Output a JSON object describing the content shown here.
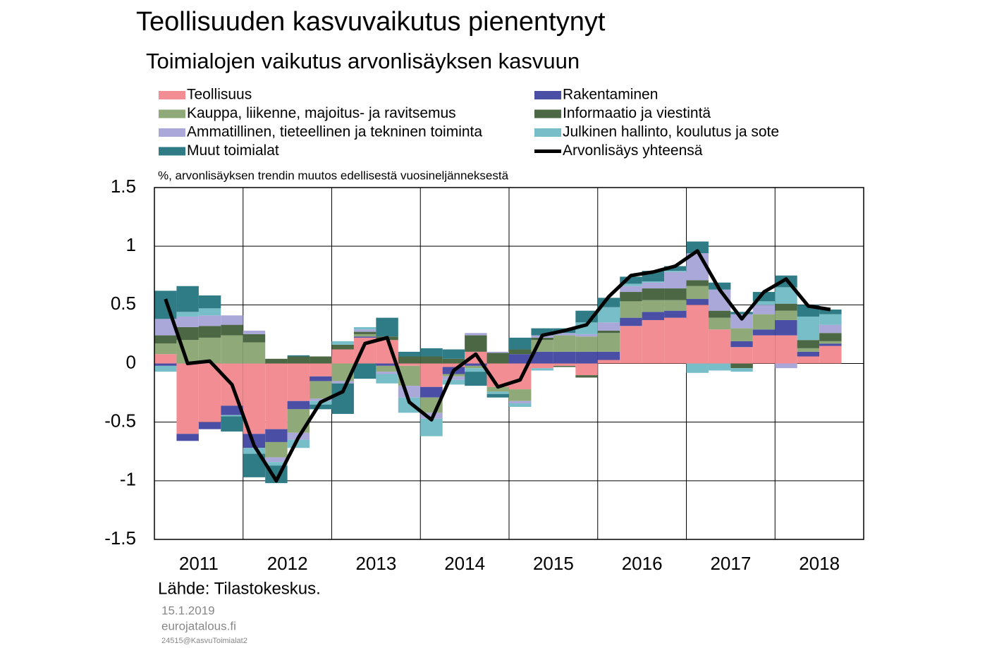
{
  "chart_data": {
    "type": "bar",
    "stacked": true,
    "title": "Teollisuuden kasvuvaikutus pienentynyt",
    "subtitle": "Toimialojen vaikutus arvonlisäyksen kasvuun",
    "y_label": "%, arvonlisäyksen trendin muutos edellisestä vuosineljänneksestä",
    "source": "Lähde: Tilastokeskus.",
    "date": "15.1.2019",
    "site": "eurojatalous.fi",
    "code": "24515@KasvuToimialat2",
    "categories": [
      "2011",
      null,
      null,
      null,
      "2012",
      null,
      null,
      null,
      "2013",
      null,
      null,
      null,
      "2014",
      null,
      null,
      null,
      "2015",
      null,
      null,
      null,
      "2016",
      null,
      null,
      null,
      "2017",
      null,
      null,
      null,
      "2018",
      null,
      null
    ],
    "ylim": [
      -1.5,
      1.5
    ],
    "yticks": [
      1.5,
      1,
      0.5,
      0,
      -0.5,
      -1,
      -1.5
    ],
    "grid": true,
    "series": [
      {
        "name": "Teollisuus",
        "color": "#f28e93",
        "values": [
          0.08,
          -0.6,
          -0.5,
          -0.36,
          -0.6,
          -0.56,
          -0.32,
          -0.11,
          0.12,
          0.22,
          0.2,
          -0.02,
          -0.2,
          -0.03,
          0.1,
          -0.2,
          -0.22,
          -0.04,
          -0.02,
          -0.1,
          0.03,
          0.32,
          0.37,
          0.39,
          0.5,
          0.29,
          0.14,
          0.24,
          0.24,
          0.06,
          0.15
        ]
      },
      {
        "name": "Rakentaminen",
        "color": "#4a4fa5",
        "values": [
          -0.02,
          -0.06,
          -0.06,
          -0.08,
          -0.12,
          -0.11,
          -0.07,
          -0.04,
          0,
          0.01,
          -0.02,
          0,
          -0.09,
          -0.06,
          -0.02,
          0,
          0.08,
          0.1,
          0.1,
          0.1,
          0.07,
          0.07,
          0.07,
          0.06,
          0.05,
          0,
          0.05,
          0.05,
          0.13,
          0.04,
          0.02
        ]
      },
      {
        "name": "Kauppa, liikenne, majoitus- ja ravitsemus",
        "color": "#8faa78",
        "values": [
          0.09,
          0.2,
          0.22,
          0.24,
          0.18,
          -0.13,
          -0.2,
          -0.15,
          -0.15,
          0.02,
          -0.05,
          -0.17,
          -0.13,
          -0.02,
          -0.02,
          -0.04,
          -0.1,
          0.1,
          0.14,
          0.13,
          0.16,
          0.14,
          0.1,
          0.09,
          0.11,
          0.1,
          0.11,
          0.13,
          0.08,
          0.03,
          0.02
        ]
      },
      {
        "name": "Informaatio ja viestintä",
        "color": "#4c6744",
        "values": [
          0.07,
          0.11,
          0.1,
          0.09,
          0.07,
          0.04,
          0.06,
          0.06,
          0.04,
          0.02,
          0.03,
          0.06,
          0.06,
          0.04,
          0.14,
          0.09,
          0.04,
          0.02,
          -0.01,
          -0.02,
          0.02,
          0.08,
          0.1,
          0.1,
          0.05,
          0.06,
          -0.04,
          0,
          0.06,
          0.07,
          0.07
        ]
      },
      {
        "name": "Ammatillinen, tieteellinen ja tekninen toiminta",
        "color": "#a9a8d8",
        "values": [
          0.14,
          0.09,
          0.09,
          0.08,
          0.03,
          -0.04,
          -0.06,
          -0.02,
          -0.02,
          0.02,
          -0.02,
          -0.1,
          -0.05,
          -0.03,
          0.02,
          0.01,
          -0.02,
          0.02,
          0.02,
          0.02,
          0.07,
          0.05,
          0.05,
          0.14,
          0.23,
          0.18,
          0.12,
          0.08,
          -0.04,
          0,
          0.07
        ]
      },
      {
        "name": "Julkinen hallinto, koulutus ja sote",
        "color": "#78bec8",
        "values": [
          -0.05,
          0.04,
          0.06,
          -0.01,
          -0.05,
          -0.03,
          -0.07,
          -0.03,
          0.03,
          0.02,
          -0.08,
          -0.13,
          -0.15,
          -0.04,
          -0.03,
          -0.02,
          -0.03,
          -0.02,
          0,
          0.1,
          0.13,
          0.02,
          0.01,
          0.01,
          -0.08,
          -0.06,
          -0.03,
          0.03,
          0.14,
          0.2,
          0.09
        ]
      },
      {
        "name": "Muut toimialat",
        "color": "#2f7c86",
        "values": [
          0.24,
          0.22,
          0.11,
          -0.13,
          -0.2,
          -0.15,
          0.01,
          -0.04,
          -0.26,
          -0.13,
          0.16,
          0.04,
          0.07,
          0.08,
          -0.12,
          -0.03,
          0.1,
          0.06,
          0.04,
          0.1,
          0.08,
          0.06,
          0.09,
          0.04,
          0.1,
          0.06,
          0.02,
          0.08,
          0.1,
          0.1,
          0.04
        ]
      },
      {
        "name": "Arvonlisäys yhteensä",
        "type": "line",
        "color": "#000000",
        "values": [
          0.55,
          0.0,
          0.02,
          -0.18,
          -0.7,
          -1.0,
          -0.63,
          -0.33,
          -0.24,
          0.17,
          0.22,
          -0.33,
          -0.48,
          -0.06,
          0.08,
          -0.2,
          -0.14,
          0.24,
          0.28,
          0.33,
          0.57,
          0.75,
          0.78,
          0.83,
          0.96,
          0.63,
          0.38,
          0.61,
          0.72,
          0.49,
          0.46
        ]
      }
    ]
  }
}
